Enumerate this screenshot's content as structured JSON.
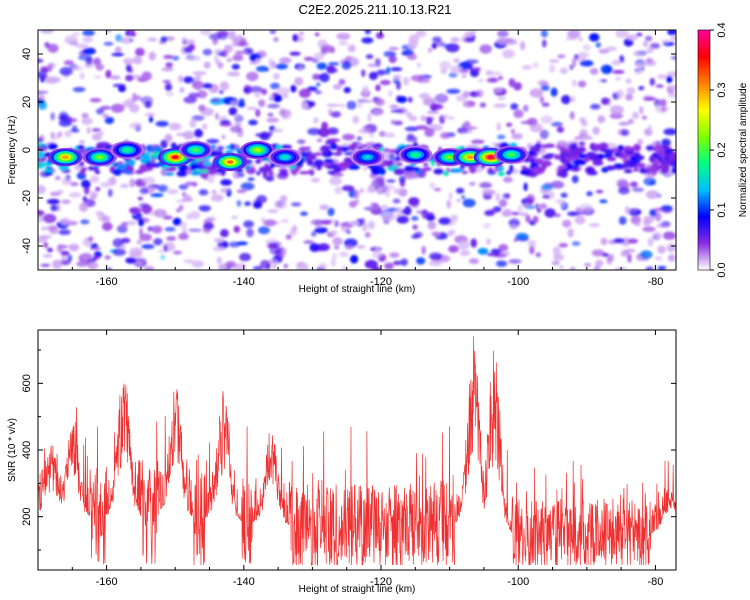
{
  "title": "C2E2.2025.211.10.13.R21",
  "chart_data": [
    {
      "type": "heatmap",
      "xlabel": "Height of straight line (km)",
      "ylabel": "Frequency (Hz)",
      "xlim": [
        -170,
        -77
      ],
      "ylim": [
        -50,
        50
      ],
      "xticks": [
        -160,
        -140,
        -120,
        -100,
        -80
      ],
      "yticks": [
        -40,
        -20,
        0,
        20,
        40
      ],
      "colorbar": {
        "label": "Normalized spectral amplitude",
        "range": [
          0,
          0.4
        ],
        "ticks": [
          0.0,
          0.1,
          0.2,
          0.3,
          0.4
        ],
        "colors": [
          "#ffffff",
          "#8a2be2",
          "#0000ff",
          "#00bfff",
          "#00ff80",
          "#80ff00",
          "#ffff00",
          "#ff8000",
          "#ff0000",
          "#ff00a0"
        ]
      },
      "hotspots": [
        {
          "x": -166,
          "y": -3,
          "value": 0.3
        },
        {
          "x": -161,
          "y": -3,
          "value": 0.22
        },
        {
          "x": -157,
          "y": 0,
          "value": 0.18
        },
        {
          "x": -150,
          "y": -3,
          "value": 0.36
        },
        {
          "x": -147,
          "y": 0,
          "value": 0.2
        },
        {
          "x": -142,
          "y": -5,
          "value": 0.32
        },
        {
          "x": -138,
          "y": 0,
          "value": 0.24
        },
        {
          "x": -134,
          "y": -3,
          "value": 0.16
        },
        {
          "x": -122,
          "y": -3,
          "value": 0.15
        },
        {
          "x": -115,
          "y": -2,
          "value": 0.18
        },
        {
          "x": -110,
          "y": -3,
          "value": 0.22
        },
        {
          "x": -107,
          "y": -3,
          "value": 0.3
        },
        {
          "x": -104,
          "y": -3,
          "value": 0.38
        },
        {
          "x": -101,
          "y": -2,
          "value": 0.2
        }
      ]
    },
    {
      "type": "line",
      "xlabel": "Height of straight line (km)",
      "ylabel": "SNR (10 * v/v)",
      "xlim": [
        -170,
        -77
      ],
      "ylim": [
        40,
        760
      ],
      "xticks": [
        -160,
        -140,
        -120,
        -100,
        -80
      ],
      "yticks": [
        200,
        400,
        600
      ],
      "color": "#f03030",
      "peaks": [
        {
          "x": -168,
          "y": 420
        },
        {
          "x": -165,
          "y": 520
        },
        {
          "x": -157.5,
          "y": 650
        },
        {
          "x": -150,
          "y": 620
        },
        {
          "x": -143,
          "y": 580
        },
        {
          "x": -136,
          "y": 470
        },
        {
          "x": -106.5,
          "y": 760
        },
        {
          "x": -103.5,
          "y": 720
        },
        {
          "x": -78,
          "y": 300
        }
      ],
      "baseline": [
        {
          "x": -170,
          "y": 200
        },
        {
          "x": -150,
          "y": 200
        },
        {
          "x": -131,
          "y": 170
        },
        {
          "x": -120,
          "y": 170
        },
        {
          "x": -108,
          "y": 180
        },
        {
          "x": -100,
          "y": 140
        },
        {
          "x": -77,
          "y": 150
        }
      ]
    }
  ]
}
